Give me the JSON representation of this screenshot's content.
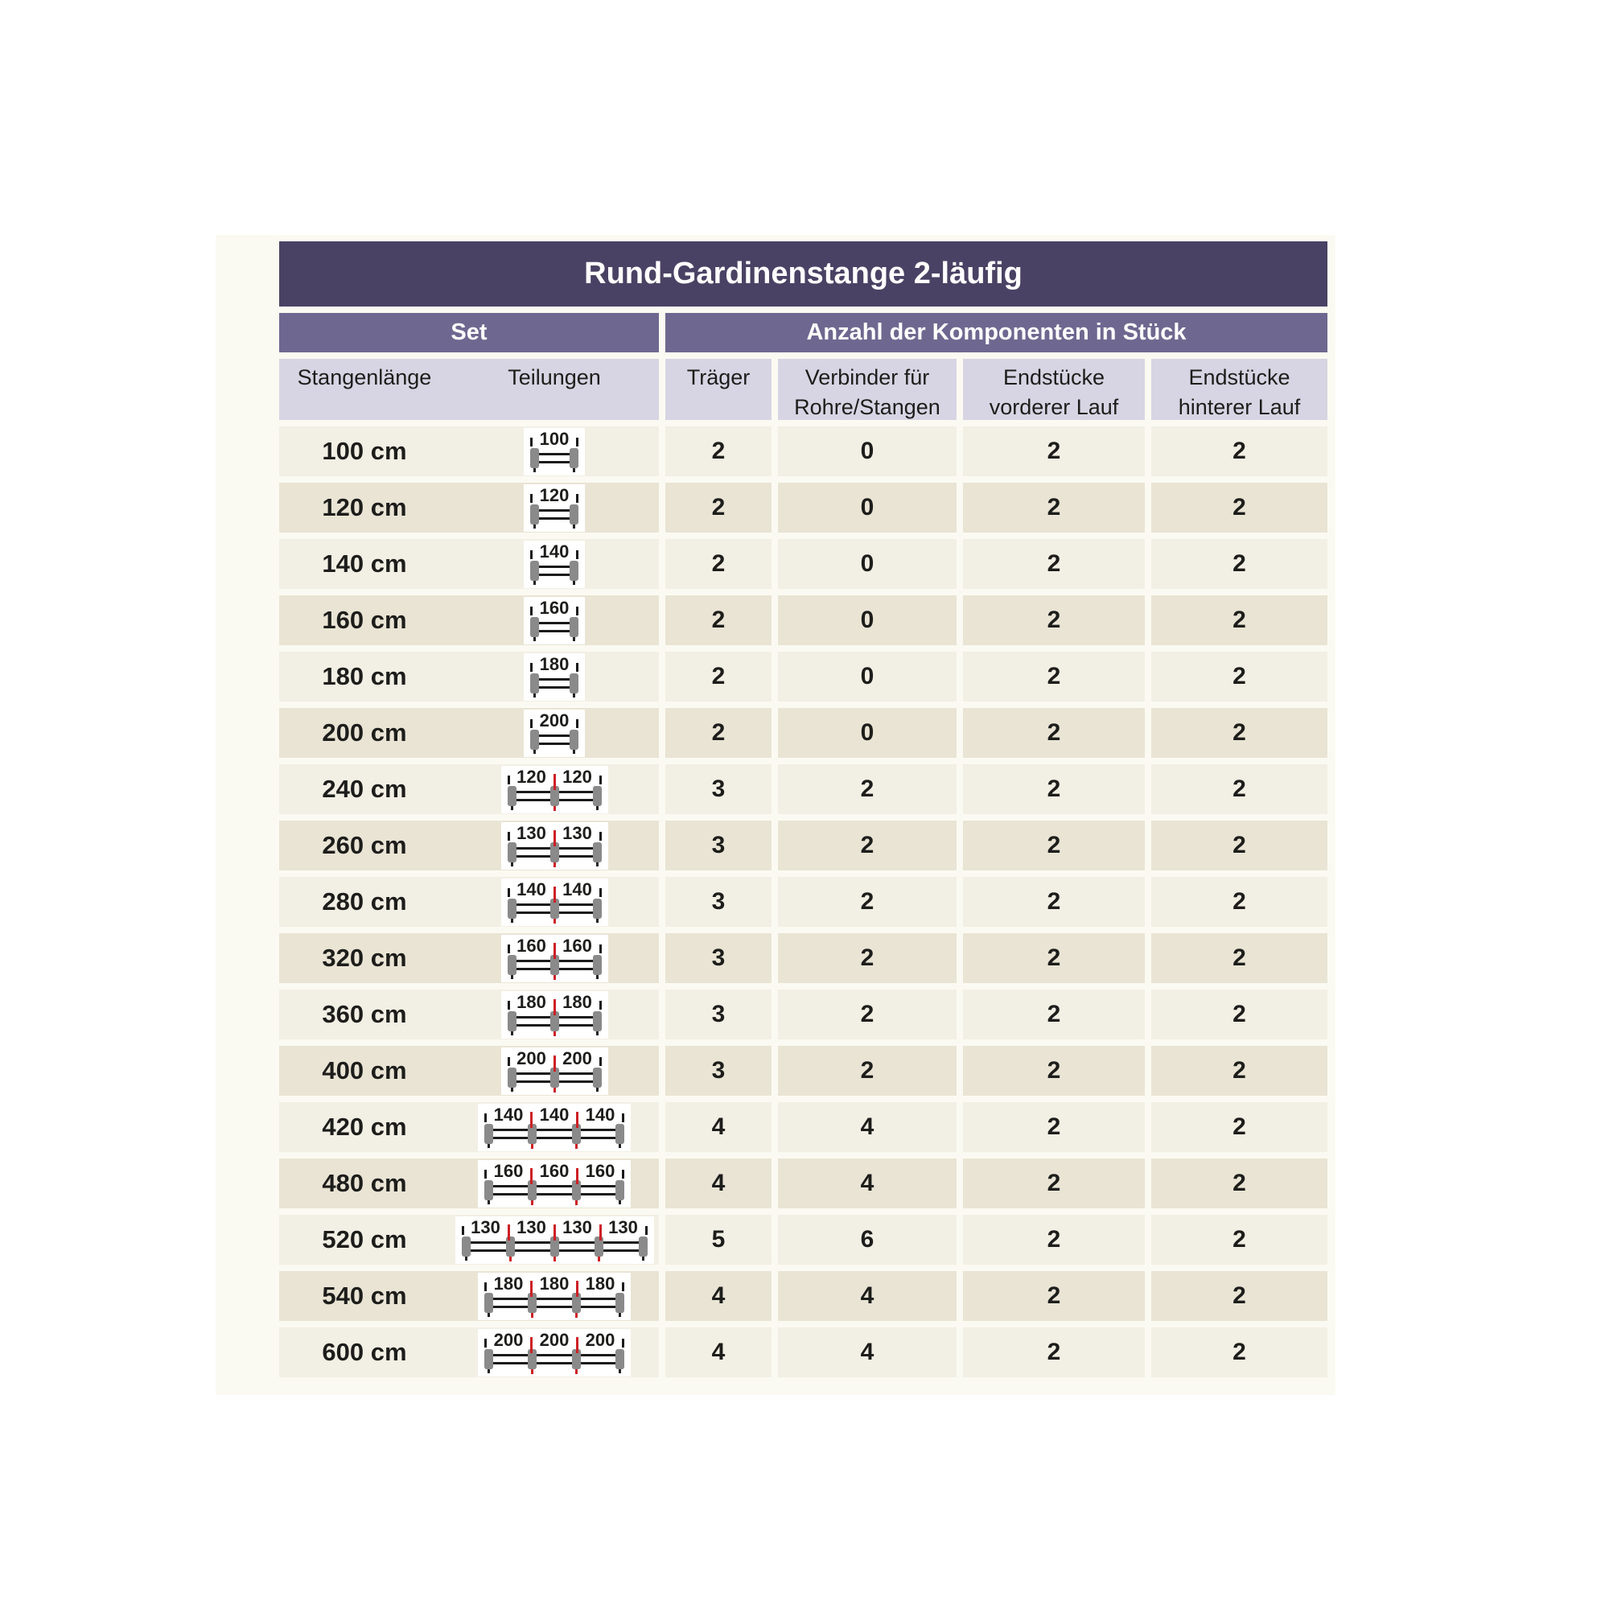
{
  "title": "Rund-Gardinenstange 2-läufig",
  "groups": {
    "set": "Set",
    "components": "Anzahl der Komponenten in Stück"
  },
  "columns": {
    "length": "Stangenlänge",
    "divisions": "Teilungen",
    "traeger": "Träger",
    "verbinder": "Verbinder für Rohre/Stangen",
    "end_front": "Endstücke vorderer Lauf",
    "end_rear": "Endstücke hinterer Lauf"
  },
  "colors": {
    "title_bg": "#4a4264",
    "group_bg": "#6e6890",
    "header_bg": "#d7d5e3",
    "row_light": "#f2efe4",
    "row_dark": "#e9e4d4",
    "card_bg": "#fbfaf2",
    "connector_red": "#cd2026",
    "cap_gray": "#8a8a8a",
    "text": "#1d1d1b"
  },
  "rows": [
    {
      "length": "100 cm",
      "segments": [
        "100"
      ],
      "traeger": "2",
      "verbinder": "0",
      "end_front": "2",
      "end_rear": "2"
    },
    {
      "length": "120 cm",
      "segments": [
        "120"
      ],
      "traeger": "2",
      "verbinder": "0",
      "end_front": "2",
      "end_rear": "2"
    },
    {
      "length": "140 cm",
      "segments": [
        "140"
      ],
      "traeger": "2",
      "verbinder": "0",
      "end_front": "2",
      "end_rear": "2"
    },
    {
      "length": "160 cm",
      "segments": [
        "160"
      ],
      "traeger": "2",
      "verbinder": "0",
      "end_front": "2",
      "end_rear": "2"
    },
    {
      "length": "180 cm",
      "segments": [
        "180"
      ],
      "traeger": "2",
      "verbinder": "0",
      "end_front": "2",
      "end_rear": "2"
    },
    {
      "length": "200 cm",
      "segments": [
        "200"
      ],
      "traeger": "2",
      "verbinder": "0",
      "end_front": "2",
      "end_rear": "2"
    },
    {
      "length": "240 cm",
      "segments": [
        "120",
        "120"
      ],
      "traeger": "3",
      "verbinder": "2",
      "end_front": "2",
      "end_rear": "2"
    },
    {
      "length": "260 cm",
      "segments": [
        "130",
        "130"
      ],
      "traeger": "3",
      "verbinder": "2",
      "end_front": "2",
      "end_rear": "2"
    },
    {
      "length": "280 cm",
      "segments": [
        "140",
        "140"
      ],
      "traeger": "3",
      "verbinder": "2",
      "end_front": "2",
      "end_rear": "2"
    },
    {
      "length": "320 cm",
      "segments": [
        "160",
        "160"
      ],
      "traeger": "3",
      "verbinder": "2",
      "end_front": "2",
      "end_rear": "2"
    },
    {
      "length": "360 cm",
      "segments": [
        "180",
        "180"
      ],
      "traeger": "3",
      "verbinder": "2",
      "end_front": "2",
      "end_rear": "2"
    },
    {
      "length": "400 cm",
      "segments": [
        "200",
        "200"
      ],
      "traeger": "3",
      "verbinder": "2",
      "end_front": "2",
      "end_rear": "2"
    },
    {
      "length": "420 cm",
      "segments": [
        "140",
        "140",
        "140"
      ],
      "traeger": "4",
      "verbinder": "4",
      "end_front": "2",
      "end_rear": "2"
    },
    {
      "length": "480 cm",
      "segments": [
        "160",
        "160",
        "160"
      ],
      "traeger": "4",
      "verbinder": "4",
      "end_front": "2",
      "end_rear": "2"
    },
    {
      "length": "520 cm",
      "segments": [
        "130",
        "130",
        "130",
        "130"
      ],
      "traeger": "5",
      "verbinder": "6",
      "end_front": "2",
      "end_rear": "2"
    },
    {
      "length": "540 cm",
      "segments": [
        "180",
        "180",
        "180"
      ],
      "traeger": "4",
      "verbinder": "4",
      "end_front": "2",
      "end_rear": "2"
    },
    {
      "length": "600 cm",
      "segments": [
        "200",
        "200",
        "200"
      ],
      "traeger": "4",
      "verbinder": "4",
      "end_front": "2",
      "end_rear": "2"
    }
  ]
}
